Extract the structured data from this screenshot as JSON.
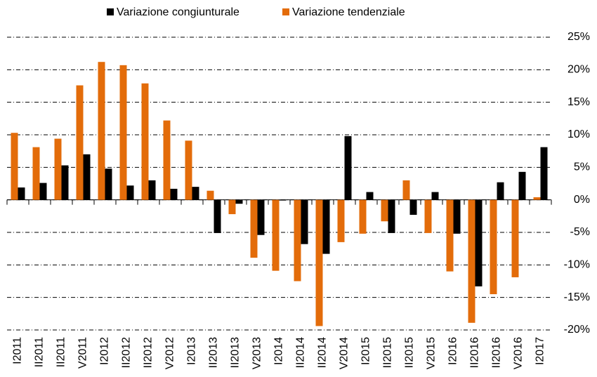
{
  "chart_data": {
    "type": "bar",
    "categories": [
      "I2011",
      "II2011",
      "II2011",
      "V2011",
      "I2012",
      "II2012",
      "II2012",
      "V2012",
      "I2013",
      "II2013",
      "II2013",
      "V2013",
      "I2014",
      "II2014",
      "II2014",
      "V2014",
      "I2015",
      "II2015",
      "II2015",
      "V2015",
      "I2016",
      "II2016",
      "II2016",
      "V2016",
      "I2017"
    ],
    "series": [
      {
        "name": "Variazione congiunturale",
        "color": "#000000",
        "values": [
          1.9,
          2.6,
          5.3,
          7.0,
          4.8,
          2.2,
          3.0,
          1.7,
          2.0,
          -5.1,
          -0.6,
          -5.4,
          -0.1,
          -6.8,
          -8.3,
          9.8,
          1.2,
          -5.1,
          -2.3,
          1.2,
          -5.2,
          -13.3,
          2.7,
          4.3,
          8.1
        ]
      },
      {
        "name": "Variazione tendenziale",
        "color": "#e36c0a",
        "values": [
          10.3,
          8.1,
          9.4,
          17.6,
          21.2,
          20.7,
          17.9,
          12.2,
          9.1,
          1.4,
          -2.2,
          -8.9,
          -10.9,
          -12.5,
          -19.4,
          -6.5,
          -5.2,
          -3.3,
          3.0,
          -5.1,
          -11.0,
          -18.9,
          -14.5,
          -11.9,
          0.4
        ]
      }
    ],
    "ylim": [
      -20,
      25
    ],
    "yticks": [
      {
        "value": -20,
        "label": "-20%"
      },
      {
        "value": -15,
        "label": "-15%"
      },
      {
        "value": -10,
        "label": "-10%"
      },
      {
        "value": -5,
        "label": "-5%"
      },
      {
        "value": 0,
        "label": "0%"
      },
      {
        "value": 5,
        "label": "5%"
      },
      {
        "value": 10,
        "label": "10%"
      },
      {
        "value": 15,
        "label": "15%"
      },
      {
        "value": 20,
        "label": "20%"
      },
      {
        "value": 25,
        "label": "25%"
      }
    ],
    "grid": true,
    "legend": "top"
  }
}
